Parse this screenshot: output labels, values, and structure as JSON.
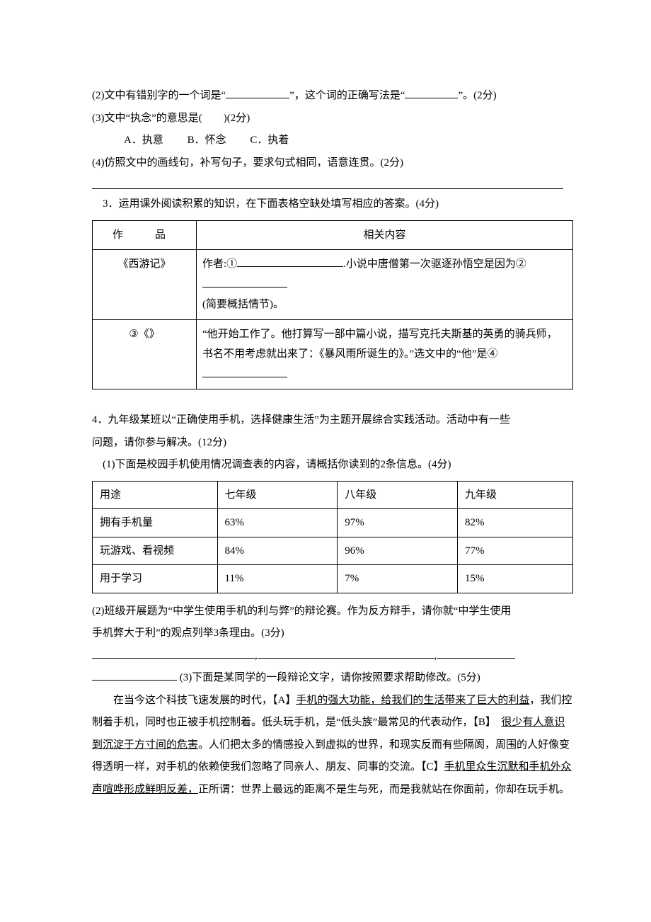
{
  "q2": {
    "item2": {
      "text_a": "(2)文中有错别字的一个词是“",
      "blank1_w": 90,
      "text_b": "”，这个词的正确写法是“",
      "blank2_w": 75,
      "text_c": "”。(2分)"
    },
    "item3": {
      "text": "(3)文中“执念”的意思是(　　)(2分)",
      "optA": "A．执意",
      "optB": "B．怀念",
      "optC": "C．执着"
    },
    "item4": {
      "text": "(4)仿照文中的画线句，补写句子，要求句式相同，语意连贯。(2分)"
    }
  },
  "q3": {
    "intro": "3．运用课外阅读积累的知识，在下面表格空缺处填写相应的答案。(4分)",
    "headers": {
      "col1": "作　品",
      "col2": "相关内容"
    },
    "row1": {
      "work": "《西游记》",
      "a": "作者:①",
      "b_blank_w": 150,
      "c": ".小说中唐僧第一次驱逐孙悟空是因为②",
      "d_blank_w": 120,
      "e": "(简要概括情节)。"
    },
    "row2": {
      "work": "③《》",
      "content_a": "“他开始工作了。他打算写一部中篇小说，描写克托夫斯基的英勇的骑兵师，书名不用考虑就出来了：《暴风雨所诞生的》。”选文中的“他”是④",
      "blank_w": 120
    }
  },
  "q4": {
    "intro_a": "4．九年级某班以“正确使用手机，选择健康生活”为主题开展综合实践活动。活动中有一些",
    "intro_b": "问题，请你参与解决。(12分)",
    "p1_intro": "(1)下面是校园手机使用情况调查表的内容，请概括你读到的2条信息。(4分)",
    "table": {
      "headers": [
        "用途",
        "七年级",
        "八年级",
        "九年级"
      ],
      "rows": [
        {
          "label": "拥有手机量",
          "c7": "63%",
          "c8": "97%",
          "c9": "82%"
        },
        {
          "label": "玩游戏、看视频",
          "c7": "84%",
          "c8": "96%",
          "c9": "77%"
        },
        {
          "label": "用于学习",
          "c7": "11%",
          "c8": "7%",
          "c9": "15%"
        }
      ]
    },
    "p2_a": "(2)班级开展题为“中学生使用手机的利与弊”的辩论赛。作为反方辩手，请你就“中学生使用",
    "p2_b": "手机弊大于利”的观点列举3条理由。(3分)",
    "p3_intro": "(3)下面是某同学的一段辩论文字，请你按照要求帮助修改。(5分)",
    "essay": {
      "s1": "在当今这个科技飞速发展的时代，",
      "tagA": "【A】",
      "uA": "手机的强大功能，给我们的生活带来了巨大的利益",
      "s2": "，我们控制着手机，同时也正被手机控制着。低头玩手机，是“低头族”最常见的代表动作，",
      "tagB": "【B】　",
      "uB": "很少有人意识到沉淀于方寸间的危害",
      "s3": "。人们把太多的情感投入到虚拟的世界，和现实反而有些隔阂，周围的人好像变得透明一样，对手机的依赖使我们忽略了同亲人、朋友、同事的交流。",
      "tagC": "【C】",
      "uC": "手机里众生沉默和手机外众声喧哗形成鲜明反差，",
      "s4": "正所谓：世界上最远的距离不是生与死，而是我就站在你面前，你却在玩手机。"
    }
  }
}
